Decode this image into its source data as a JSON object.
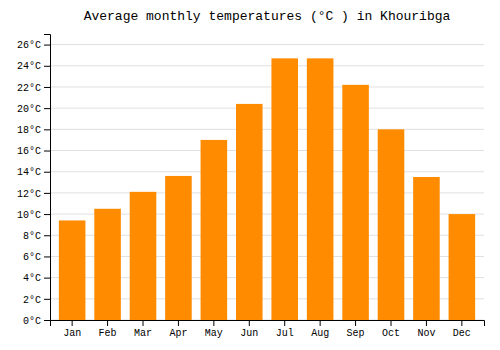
{
  "chart_data": {
    "type": "bar",
    "title": "Average monthly temperatures (°C ) in Khouribga",
    "categories": [
      "Jan",
      "Feb",
      "Mar",
      "Apr",
      "May",
      "Jun",
      "Jul",
      "Aug",
      "Sep",
      "Oct",
      "Nov",
      "Dec"
    ],
    "values": [
      9.4,
      10.5,
      12.1,
      13.6,
      17.0,
      20.4,
      24.7,
      24.7,
      22.2,
      18.0,
      13.5,
      10.0
    ],
    "color": "#FF8C00",
    "ylim": [
      0,
      27
    ],
    "yticks": [
      {
        "value": 0,
        "label": "0°C"
      },
      {
        "value": 2,
        "label": "2°C"
      },
      {
        "value": 4,
        "label": "4°C"
      },
      {
        "value": 6,
        "label": "6°C"
      },
      {
        "value": 8,
        "label": "8°C"
      },
      {
        "value": 10,
        "label": "10°C"
      },
      {
        "value": 12,
        "label": "12°C"
      },
      {
        "value": 14,
        "label": "14°C"
      },
      {
        "value": 16,
        "label": "16°C"
      },
      {
        "value": 18,
        "label": "18°C"
      },
      {
        "value": 20,
        "label": "20°C"
      },
      {
        "value": 22,
        "label": "22°C"
      },
      {
        "value": 24,
        "label": "24°C"
      },
      {
        "value": 26,
        "label": "26°C"
      }
    ],
    "grid": true
  }
}
